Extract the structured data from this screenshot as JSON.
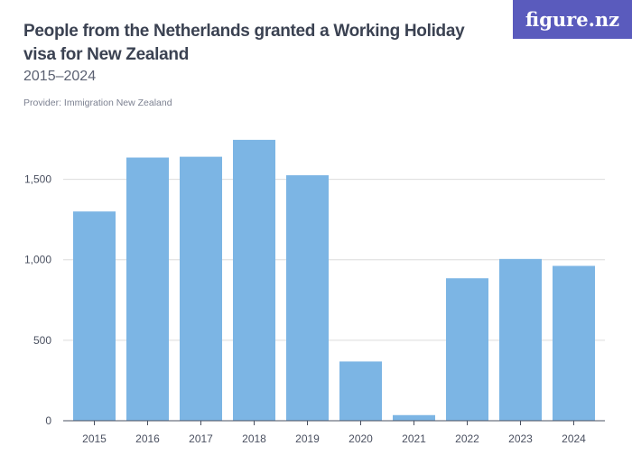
{
  "header": {
    "title": "People from the Netherlands granted a Working Holiday visa for New Zealand",
    "subtitle": "2015–2024",
    "provider": "Provider: Immigration New Zealand",
    "logo": "figure.nz"
  },
  "colors": {
    "bar": "#7cb5e4",
    "grid": "#dcdcdc",
    "axis": "#4a5060",
    "logo_bg": "#5a5bbd"
  },
  "chart_data": {
    "type": "bar",
    "categories": [
      "2015",
      "2016",
      "2017",
      "2018",
      "2019",
      "2020",
      "2021",
      "2022",
      "2023",
      "2024"
    ],
    "values": [
      1300,
      1635,
      1640,
      1745,
      1525,
      368,
      35,
      885,
      1005,
      962
    ],
    "ylim": [
      0,
      1750
    ],
    "yticks": [
      0,
      500,
      1000,
      1500
    ],
    "ytick_labels": [
      "0",
      "500",
      "1,000",
      "1,500"
    ],
    "grid": true
  }
}
